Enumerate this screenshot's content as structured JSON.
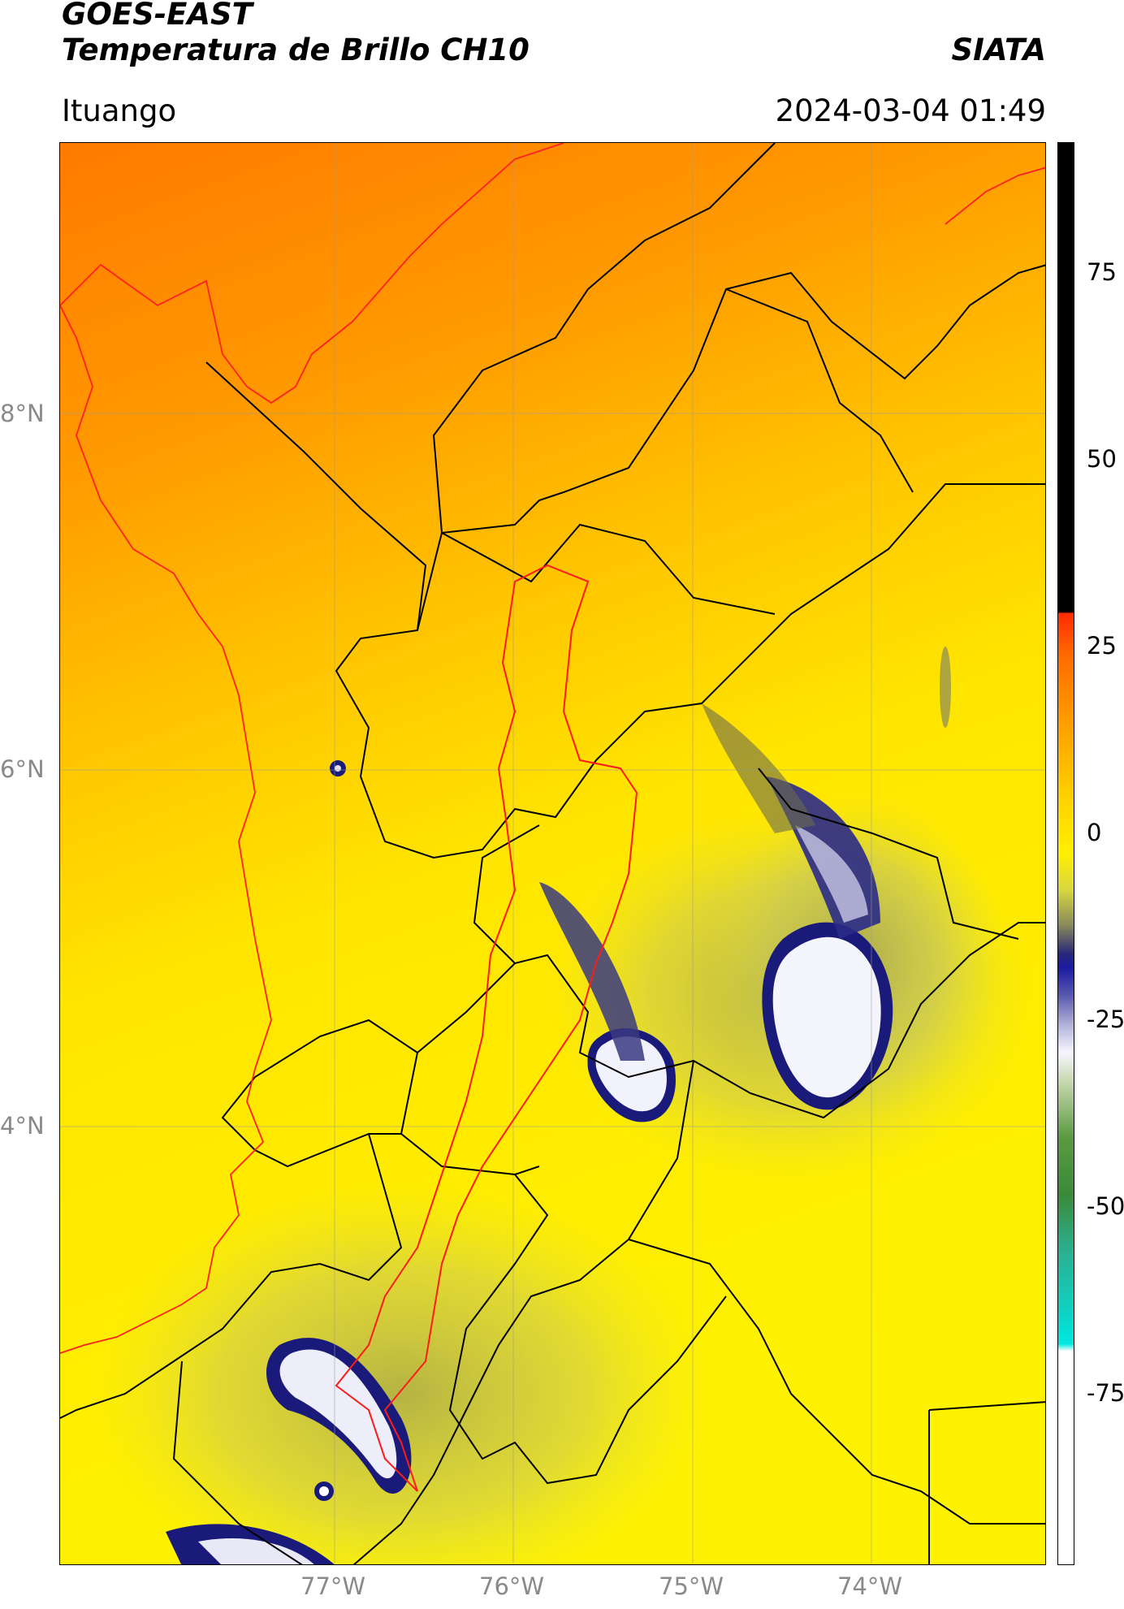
{
  "header": {
    "satellite": "GOES-EAST",
    "product": "Temperatura de Brillo CH10",
    "agency": "SIATA",
    "region": "Ituango",
    "datetime": "2024-03-04 01:49"
  },
  "map": {
    "lat_labels": [
      "8°N",
      "6°N",
      "4°N"
    ],
    "lon_labels": [
      "77°W",
      "76°W",
      "75°W",
      "74°W"
    ],
    "colors": {
      "warm_orange": "#ff8a00",
      "orange": "#ffa500",
      "yellow": "#ffee00",
      "olive": "#b9b94a",
      "navy": "#1a1a7a",
      "cloud_white": "#f4f4ff",
      "borders": "#000000",
      "basin_outline": "#ff1a1a"
    }
  },
  "colorbar": {
    "ticks": [
      "75",
      "50",
      "25",
      "0",
      "-25",
      "-50",
      "-75"
    ]
  }
}
